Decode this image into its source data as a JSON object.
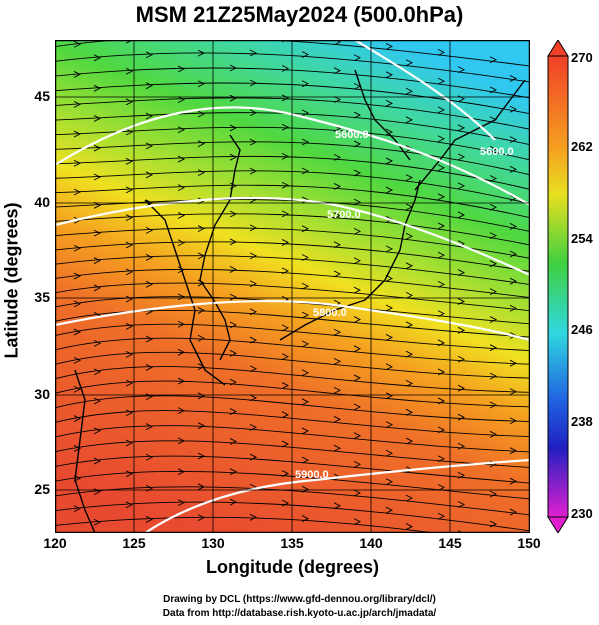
{
  "title": "MSM 21Z25May2024 (500.0hPa)",
  "xlabel": "Longitude (degrees)",
  "ylabel": "Latitude  (degrees)",
  "xticks": [
    "120",
    "125",
    "130",
    "135",
    "140",
    "145",
    "150"
  ],
  "yticks": [
    "25",
    "30",
    "35",
    "40",
    "45"
  ],
  "colorbar_ticks": [
    "270",
    "262",
    "254",
    "246",
    "238",
    "230"
  ],
  "contour_labels": [
    "5600.0",
    "5600.0",
    "5700.0",
    "5800.0",
    "5900.0"
  ],
  "credits": {
    "line1": "Drawing by DCL (https://www.gfd-dennou.org/library/dcl/)",
    "line2": "Data from http://database.rish.kyoto-u.ac.jp/arch/jmadata/"
  },
  "colors": {
    "warm": "#e8502a",
    "mid": "#f5a020",
    "yellow": "#e8e020",
    "green": "#40d040",
    "cyan": "#30d8e0"
  }
}
